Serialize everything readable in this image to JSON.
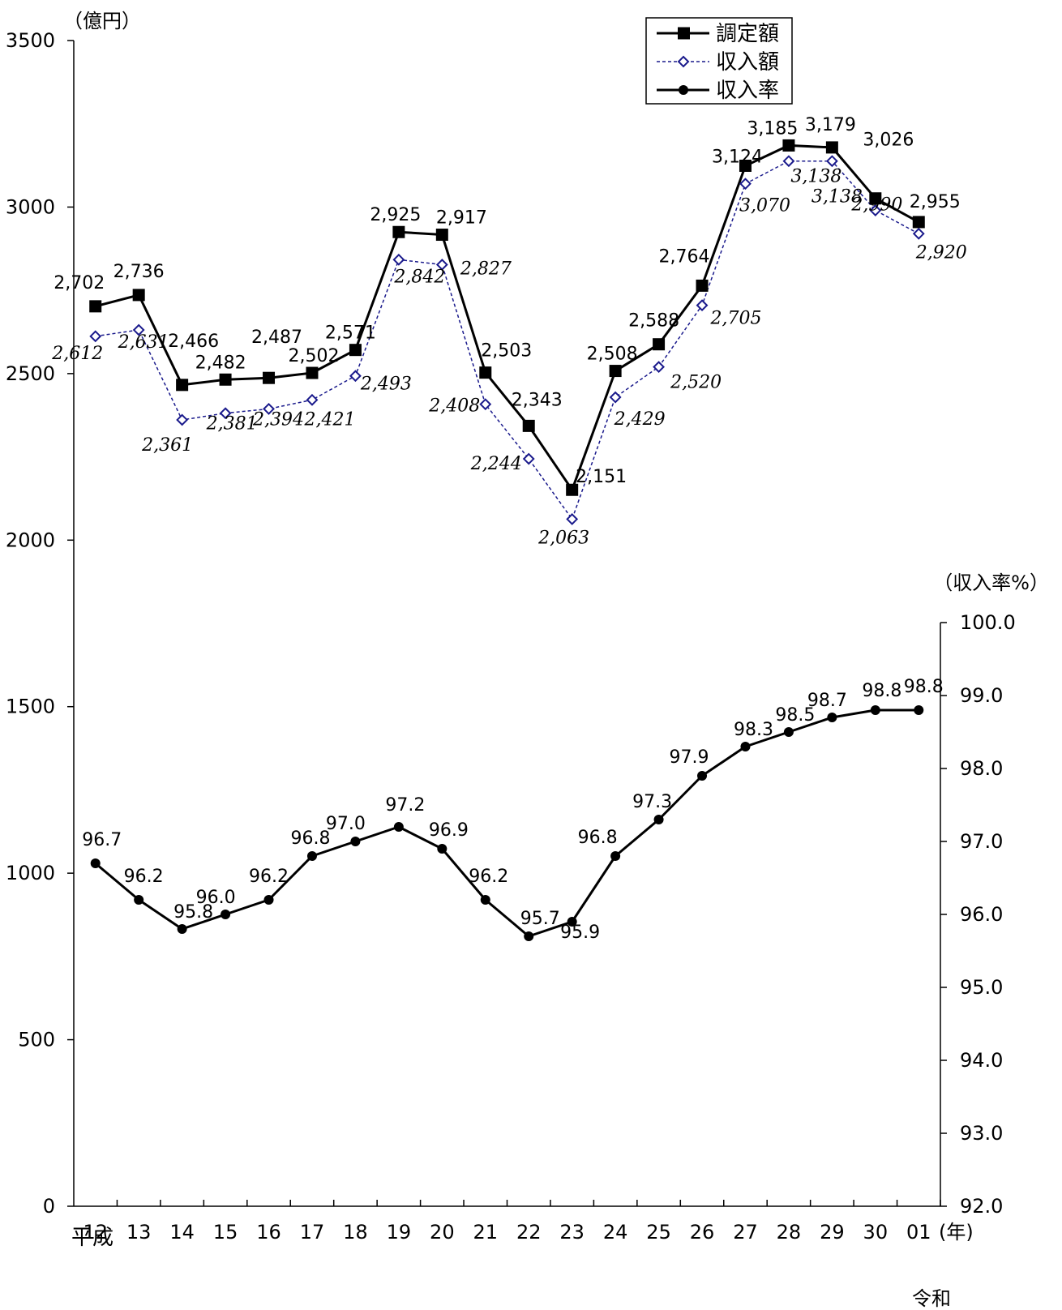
{
  "chart_data": {
    "type": "line",
    "left_unit": "（億円）",
    "right_unit": "（収入率%）",
    "x_unit": "(年)",
    "era_start_label": "平成",
    "era_end_label": "令和",
    "categories": [
      "12",
      "13",
      "14",
      "15",
      "16",
      "17",
      "18",
      "19",
      "20",
      "21",
      "22",
      "23",
      "24",
      "25",
      "26",
      "27",
      "28",
      "29",
      "30",
      "01"
    ],
    "left_axis": {
      "min": 0,
      "max": 3500,
      "ticks": [
        "0",
        "500",
        "1000",
        "1500",
        "2000",
        "2500",
        "3000",
        "3500"
      ]
    },
    "right_axis": {
      "min": 92.0,
      "max": 100.0,
      "ticks": [
        "92.0",
        "93.0",
        "94.0",
        "95.0",
        "96.0",
        "97.0",
        "98.0",
        "99.0",
        "100.0"
      ]
    },
    "grid": false,
    "legend_position": "top-right",
    "series": [
      {
        "name": "調定額",
        "axis": "left",
        "marker": "square",
        "color": "#000000",
        "values": [
          2702,
          2736,
          2466,
          2482,
          2487,
          2502,
          2571,
          2925,
          2917,
          2503,
          2343,
          2151,
          2508,
          2588,
          2764,
          3124,
          3185,
          3179,
          3026,
          2955
        ],
        "labels": [
          "2,702",
          "2,736",
          "2,466",
          "2,482",
          "2,487",
          "2,502",
          "2,571",
          "2,925",
          "2,917",
          "2,503",
          "2,343",
          "2,151",
          "2,508",
          "2,588",
          "2,764",
          "3,124",
          "3,185",
          "3,179",
          "3,026",
          "2,955"
        ]
      },
      {
        "name": "収入額",
        "axis": "left",
        "marker": "diamond",
        "color": "#1a1a8c",
        "values": [
          2612,
          2631,
          2361,
          2381,
          2394,
          2421,
          2493,
          2842,
          2827,
          2408,
          2244,
          2063,
          2429,
          2520,
          2705,
          3070,
          3138,
          3138,
          2990,
          2920
        ],
        "labels": [
          "2,612",
          "2,631",
          "2,361",
          "2,381",
          "2,394",
          "2,421",
          "2,493",
          "2,842",
          "2,827",
          "2,408",
          "2,244",
          "2,063",
          "2,429",
          "2,520",
          "2,705",
          "3,070",
          "3,138",
          "3,138",
          "2,990",
          "2,920"
        ]
      },
      {
        "name": "収入率",
        "axis": "right",
        "marker": "circle",
        "color": "#000000",
        "values": [
          96.7,
          96.2,
          95.8,
          96.0,
          96.2,
          96.8,
          97.0,
          97.2,
          96.9,
          96.2,
          95.7,
          95.9,
          96.8,
          97.3,
          97.9,
          98.3,
          98.5,
          98.7,
          98.8,
          98.8
        ],
        "labels": [
          "96.7",
          "96.2",
          "95.8",
          "96.0",
          "96.2",
          "96.8",
          "97.0",
          "97.2",
          "96.9",
          "96.2",
          "95.7",
          "95.9",
          "96.8",
          "97.3",
          "97.9",
          "98.3",
          "98.5",
          "98.7",
          "98.8",
          "98.8"
        ]
      }
    ]
  }
}
